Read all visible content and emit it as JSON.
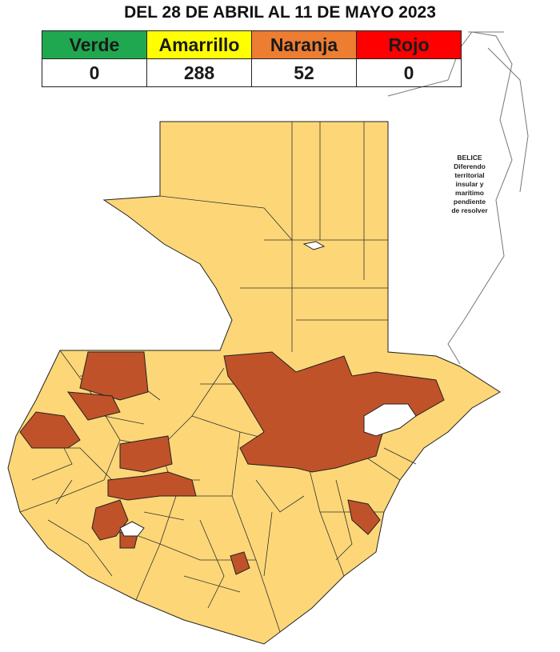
{
  "title": "DEL 28 DE ABRIL AL 11 DE MAYO 2023",
  "table": {
    "headers": [
      "Verde",
      "Amarrillo",
      "Naranja",
      "Rojo"
    ],
    "colors": [
      "#1fa84f",
      "#ffff00",
      "#ed7d31",
      "#ff0000"
    ],
    "values": [
      0,
      288,
      52,
      0
    ]
  },
  "map": {
    "note": [
      "BELICE",
      "Diferendo",
      "territorial",
      "insular y",
      "marítimo",
      "pendiente",
      "de resolver"
    ]
  }
}
